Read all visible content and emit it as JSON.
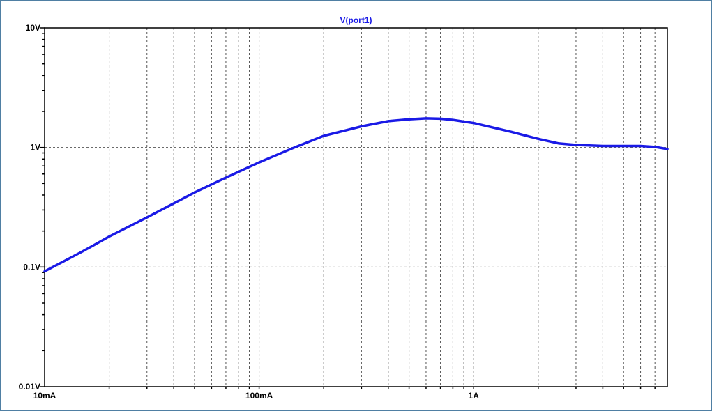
{
  "chart_data": {
    "type": "line",
    "title": "V(port1)",
    "xlabel": "",
    "ylabel": "",
    "x_scale": "log",
    "y_scale": "log",
    "xlim": [
      0.01,
      8
    ],
    "ylim": [
      0.01,
      10
    ],
    "grid": true,
    "x_tick_labels": [
      {
        "value": 0.01,
        "label": "10mA"
      },
      {
        "value": 0.1,
        "label": "100mA"
      },
      {
        "value": 1,
        "label": "1A"
      }
    ],
    "y_tick_labels": [
      {
        "value": 10,
        "label": "10V"
      },
      {
        "value": 1,
        "label": "1V"
      },
      {
        "value": 0.1,
        "label": "0.1V"
      },
      {
        "value": 0.01,
        "label": "0.01V"
      }
    ],
    "series": [
      {
        "name": "V(port1)",
        "color": "#1a1ae6",
        "x": [
          0.01,
          0.015,
          0.02,
          0.03,
          0.05,
          0.07,
          0.1,
          0.15,
          0.2,
          0.3,
          0.4,
          0.5,
          0.6,
          0.7,
          0.8,
          1.0,
          1.5,
          2.0,
          2.5,
          3.0,
          4.0,
          5.0,
          6.0,
          7.0,
          8.0
        ],
        "y": [
          0.092,
          0.135,
          0.18,
          0.26,
          0.42,
          0.56,
          0.75,
          1.02,
          1.25,
          1.5,
          1.66,
          1.72,
          1.75,
          1.74,
          1.7,
          1.6,
          1.35,
          1.18,
          1.08,
          1.05,
          1.03,
          1.03,
          1.03,
          1.01,
          0.97
        ]
      }
    ]
  }
}
